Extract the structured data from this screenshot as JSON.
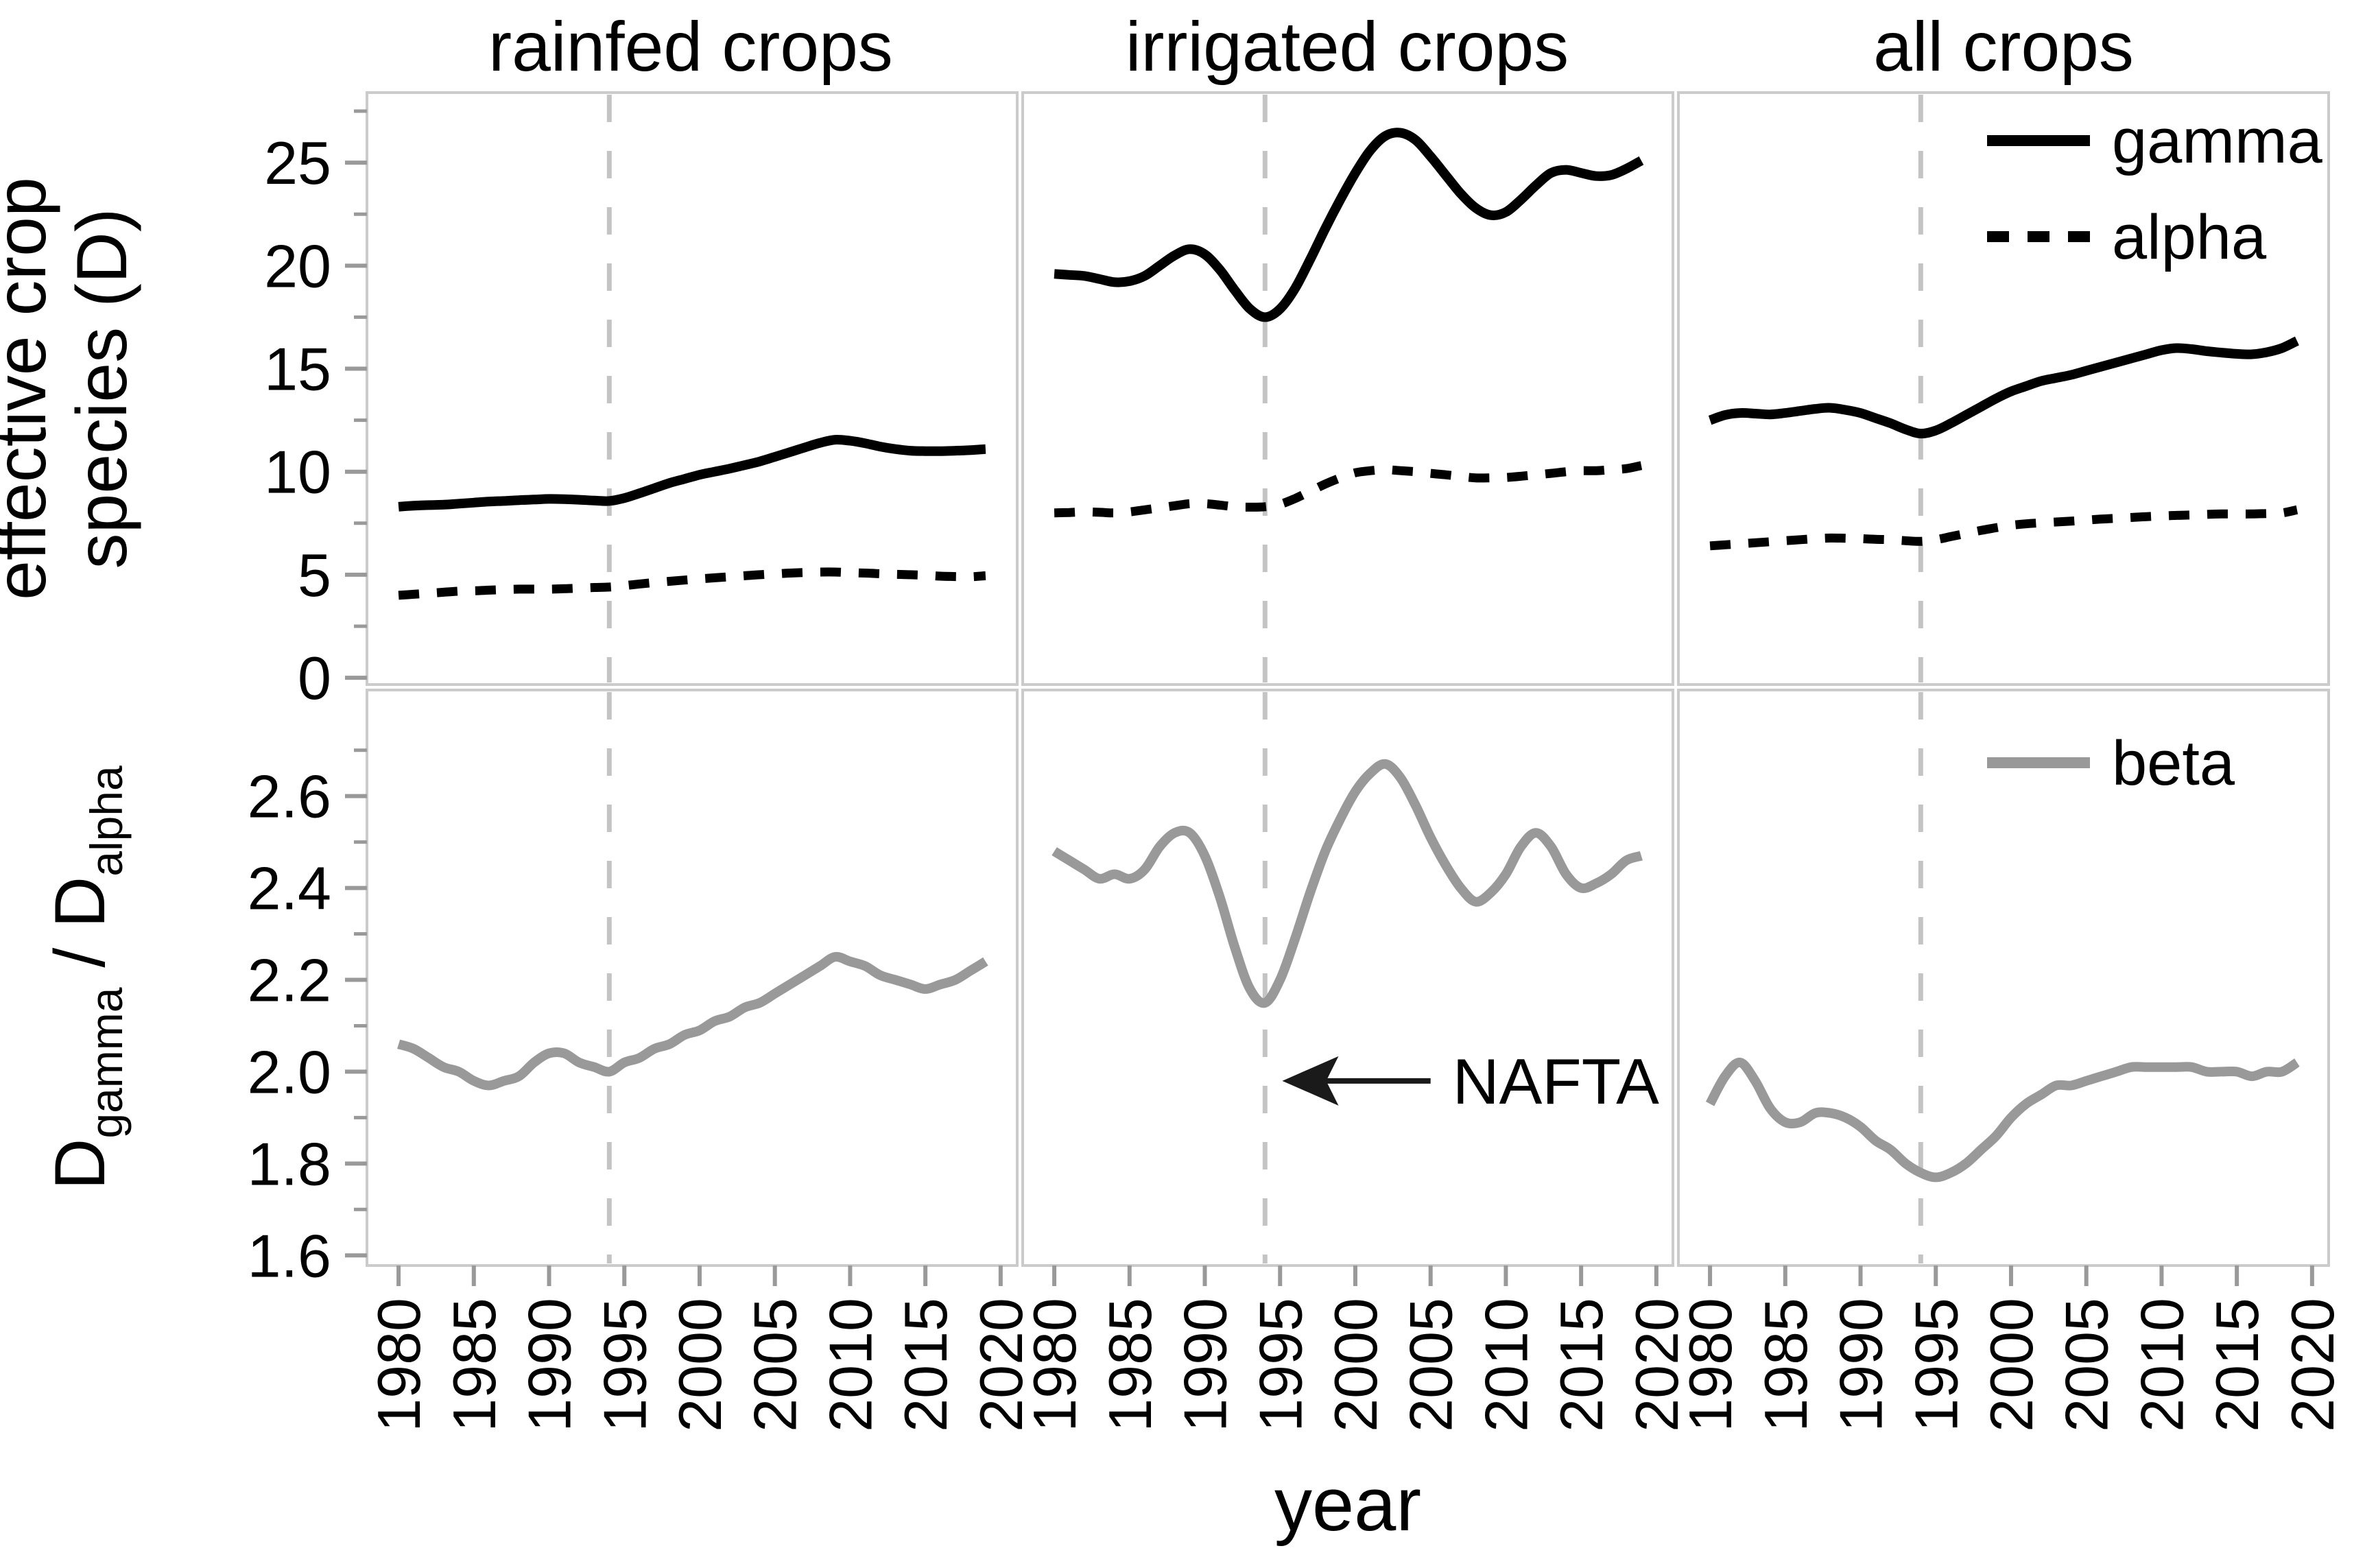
{
  "figure": {
    "background": "#ffffff",
    "xlabel": "year",
    "row1_ylabel_lines": [
      "effective crop",
      "species (D)"
    ],
    "row2_ylabel_parts": [
      {
        "text": "D",
        "sub": false
      },
      {
        "text": "gamma",
        "sub": true
      },
      {
        "text": " / D",
        "sub": false
      },
      {
        "text": "alpha",
        "sub": true
      }
    ],
    "colors": {
      "black_line": "#000000",
      "gray_line": "#999999",
      "vline": "#c4c4c4",
      "panel_border": "#cbcbcb",
      "tick": "#999999",
      "text": "#000000"
    }
  },
  "chart_data": {
    "type": "line",
    "title": "",
    "xlabel": "year",
    "facet_titles": [
      "rainfed crops",
      "irrigated crops",
      "all crops"
    ],
    "xlim": [
      1977.9,
      2021.1
    ],
    "xticks": [
      1980,
      1985,
      1990,
      1995,
      2000,
      2005,
      2010,
      2015,
      2020
    ],
    "vline_year": 1994,
    "grid": false,
    "x": [
      1980,
      1981,
      1982,
      1983,
      1984,
      1985,
      1986,
      1987,
      1988,
      1989,
      1990,
      1991,
      1992,
      1993,
      1994,
      1995,
      1996,
      1997,
      1998,
      1999,
      2000,
      2001,
      2002,
      2003,
      2004,
      2005,
      2006,
      2007,
      2008,
      2009,
      2010,
      2011,
      2012,
      2013,
      2014,
      2015,
      2016,
      2017,
      2018,
      2019
    ],
    "rows": [
      {
        "ylabel": "effective crop species (D)",
        "ylim": [
          -0.33,
          28.4
        ],
        "yticks": [
          "0",
          "5",
          "10",
          "15",
          "20",
          "25"
        ],
        "ytick_values": [
          0,
          5,
          10,
          15,
          20,
          25
        ],
        "yticks_minor": [
          2.5,
          7.5,
          12.5,
          17.5,
          22.5,
          27.5
        ],
        "legend": [
          {
            "label": "gamma",
            "dash": "solid",
            "color": "#000000"
          },
          {
            "label": "alpha",
            "dash": "dashed",
            "color": "#000000"
          }
        ],
        "series": [
          {
            "name": "gamma",
            "facet": 0,
            "color": "#000000",
            "dash": "solid",
            "y": [
              8.3,
              8.35,
              8.38,
              8.4,
              8.45,
              8.5,
              8.55,
              8.58,
              8.62,
              8.65,
              8.68,
              8.67,
              8.64,
              8.6,
              8.58,
              8.72,
              8.95,
              9.2,
              9.45,
              9.65,
              9.85,
              10.0,
              10.15,
              10.32,
              10.5,
              10.72,
              10.95,
              11.18,
              11.4,
              11.55,
              11.5,
              11.38,
              11.22,
              11.1,
              11.02,
              11.0,
              11.0,
              11.02,
              11.05,
              11.1
            ]
          },
          {
            "name": "alpha",
            "facet": 0,
            "color": "#000000",
            "dash": "dashed",
            "y": [
              4.0,
              4.05,
              4.1,
              4.15,
              4.2,
              4.22,
              4.25,
              4.28,
              4.3,
              4.3,
              4.3,
              4.32,
              4.35,
              4.38,
              4.4,
              4.47,
              4.55,
              4.62,
              4.68,
              4.74,
              4.8,
              4.85,
              4.9,
              4.95,
              5.0,
              5.04,
              5.08,
              5.11,
              5.13,
              5.13,
              5.1,
              5.08,
              5.05,
              5.02,
              5.0,
              4.97,
              4.93,
              4.91,
              4.9,
              4.95
            ]
          },
          {
            "name": "gamma",
            "facet": 1,
            "color": "#000000",
            "dash": "solid",
            "y": [
              19.6,
              19.55,
              19.5,
              19.35,
              19.2,
              19.25,
              19.5,
              20.0,
              20.5,
              20.8,
              20.55,
              19.8,
              18.8,
              17.9,
              17.5,
              17.9,
              18.9,
              20.3,
              21.8,
              23.2,
              24.5,
              25.6,
              26.3,
              26.45,
              26.1,
              25.3,
              24.4,
              23.5,
              22.8,
              22.45,
              22.6,
              23.2,
              23.9,
              24.5,
              24.65,
              24.5,
              24.35,
              24.4,
              24.7,
              25.1
            ]
          },
          {
            "name": "alpha",
            "facet": 1,
            "color": "#000000",
            "dash": "dashed",
            "y": [
              8.0,
              8.02,
              8.05,
              8.03,
              8.0,
              8.05,
              8.15,
              8.25,
              8.35,
              8.45,
              8.45,
              8.38,
              8.3,
              8.28,
              8.3,
              8.42,
              8.7,
              9.05,
              9.4,
              9.7,
              9.95,
              10.05,
              10.1,
              10.05,
              10.0,
              9.92,
              9.85,
              9.77,
              9.7,
              9.7,
              9.72,
              9.78,
              9.85,
              9.92,
              10.0,
              10.05,
              10.05,
              10.1,
              10.15,
              10.3
            ]
          },
          {
            "name": "gamma",
            "facet": 2,
            "color": "#000000",
            "dash": "solid",
            "y": [
              12.5,
              12.75,
              12.85,
              12.82,
              12.78,
              12.85,
              12.95,
              13.05,
              13.1,
              13.0,
              12.85,
              12.6,
              12.35,
              12.05,
              11.85,
              12.0,
              12.35,
              12.75,
              13.15,
              13.55,
              13.9,
              14.15,
              14.4,
              14.55,
              14.7,
              14.9,
              15.1,
              15.3,
              15.5,
              15.7,
              15.9,
              16.0,
              15.95,
              15.85,
              15.78,
              15.72,
              15.7,
              15.8,
              16.0,
              16.35
            ]
          },
          {
            "name": "alpha",
            "facet": 2,
            "color": "#000000",
            "dash": "dashed",
            "y": [
              6.4,
              6.45,
              6.5,
              6.55,
              6.6,
              6.65,
              6.7,
              6.75,
              6.78,
              6.77,
              6.75,
              6.72,
              6.7,
              6.65,
              6.62,
              6.7,
              6.85,
              7.0,
              7.15,
              7.28,
              7.4,
              7.47,
              7.52,
              7.56,
              7.6,
              7.65,
              7.7,
              7.74,
              7.78,
              7.82,
              7.85,
              7.88,
              7.9,
              7.93,
              7.95,
              7.95,
              7.95,
              7.97,
              8.0,
              8.15
            ]
          }
        ]
      },
      {
        "ylabel": "Dgamma / Dalpha",
        "ylim": [
          1.578,
          2.831
        ],
        "yticks": [
          "1.6",
          "1.8",
          "2.0",
          "2.2",
          "2.4",
          "2.6"
        ],
        "ytick_values": [
          1.6,
          1.8,
          2.0,
          2.2,
          2.4,
          2.6
        ],
        "yticks_minor": [
          1.7,
          1.9,
          2.1,
          2.3,
          2.5,
          2.7
        ],
        "legend": [
          {
            "label": "beta",
            "dash": "solid",
            "color": "#999999"
          }
        ],
        "annotation": {
          "text": "NAFTA",
          "facet": 1,
          "y": 1.98,
          "arrow_tip_year": 1994.6,
          "arrow_tail_year": 2005.0
        },
        "series": [
          {
            "name": "beta",
            "facet": 0,
            "color": "#999999",
            "dash": "solid",
            "y": [
              2.06,
              2.05,
              2.03,
              2.01,
              2.0,
              1.98,
              1.97,
              1.98,
              1.99,
              2.02,
              2.04,
              2.04,
              2.02,
              2.01,
              2.0,
              2.02,
              2.03,
              2.05,
              2.06,
              2.08,
              2.09,
              2.11,
              2.12,
              2.14,
              2.15,
              2.17,
              2.19,
              2.21,
              2.23,
              2.25,
              2.24,
              2.23,
              2.21,
              2.2,
              2.19,
              2.18,
              2.19,
              2.2,
              2.22,
              2.24
            ]
          },
          {
            "name": "beta",
            "facet": 1,
            "color": "#999999",
            "dash": "solid",
            "y": [
              2.48,
              2.46,
              2.44,
              2.42,
              2.43,
              2.42,
              2.44,
              2.49,
              2.52,
              2.52,
              2.47,
              2.38,
              2.27,
              2.18,
              2.15,
              2.2,
              2.29,
              2.39,
              2.48,
              2.55,
              2.61,
              2.65,
              2.67,
              2.64,
              2.58,
              2.51,
              2.45,
              2.4,
              2.37,
              2.39,
              2.43,
              2.49,
              2.52,
              2.49,
              2.43,
              2.4,
              2.41,
              2.43,
              2.46,
              2.47
            ]
          },
          {
            "name": "beta",
            "facet": 2,
            "color": "#999999",
            "dash": "solid",
            "y": [
              1.93,
              1.99,
              2.02,
              1.98,
              1.92,
              1.89,
              1.89,
              1.91,
              1.91,
              1.9,
              1.88,
              1.85,
              1.83,
              1.8,
              1.78,
              1.77,
              1.78,
              1.8,
              1.83,
              1.86,
              1.9,
              1.93,
              1.95,
              1.97,
              1.97,
              1.98,
              1.99,
              2.0,
              2.01,
              2.01,
              2.01,
              2.01,
              2.01,
              2.0,
              2.0,
              2.0,
              1.99,
              2.0,
              2.0,
              2.02
            ]
          }
        ]
      }
    ]
  }
}
